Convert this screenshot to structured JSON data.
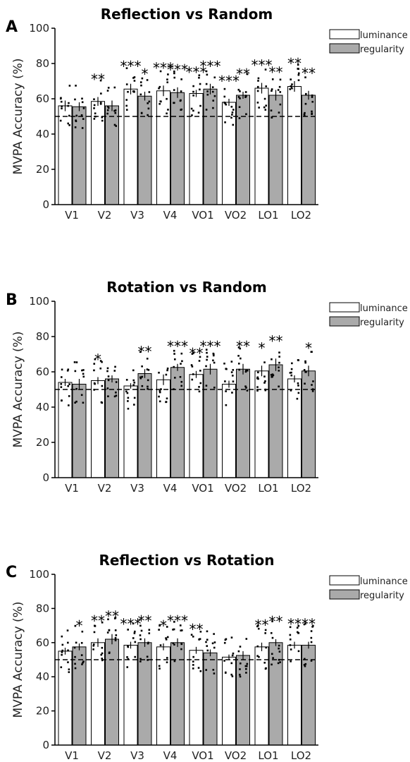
{
  "chart_data": [
    {
      "panel_letter": "A",
      "type": "bar",
      "title": "Reflection vs Random",
      "ylabel": "MVPA Accuracy (%)",
      "xlabel": "",
      "ylim": [
        0,
        100
      ],
      "yticks": [
        0,
        20,
        40,
        60,
        80,
        100
      ],
      "chance_line": 50,
      "legend": {
        "position": "top-right",
        "entries": [
          "luminance",
          "regularity"
        ]
      },
      "categories": [
        "V1",
        "V2",
        "V3",
        "V4",
        "VO1",
        "VO2",
        "LO1",
        "LO2"
      ],
      "series": [
        {
          "name": "luminance",
          "color": "#ffffff",
          "values": [
            56,
            58.5,
            65.5,
            64.5,
            63,
            58,
            66,
            67
          ],
          "sem": [
            3,
            2.5,
            3,
            3,
            2,
            2,
            3,
            3
          ],
          "significance": [
            "",
            "**",
            "***",
            "***",
            "***",
            "***",
            "***",
            "**"
          ]
        },
        {
          "name": "regularity",
          "color": "#aaaaaa",
          "values": [
            55.5,
            56,
            61.5,
            63.5,
            65.5,
            62,
            62,
            62
          ],
          "sem": [
            2.5,
            3,
            2.5,
            3,
            3,
            2,
            3,
            2.5
          ],
          "significance": [
            "",
            "",
            "*",
            "***",
            "***",
            "**",
            "**",
            "**"
          ]
        }
      ]
    },
    {
      "panel_letter": "B",
      "type": "bar",
      "title": "Rotation vs Random",
      "ylabel": "MVPA Accuracy (%)",
      "xlabel": "",
      "ylim": [
        0,
        100
      ],
      "yticks": [
        0,
        20,
        40,
        60,
        80,
        100
      ],
      "chance_line": 50,
      "legend": {
        "position": "top-right",
        "entries": [
          "luminance",
          "regularity"
        ]
      },
      "categories": [
        "V1",
        "V2",
        "V3",
        "V4",
        "VO1",
        "VO2",
        "LO1",
        "LO2"
      ],
      "series": [
        {
          "name": "luminance",
          "color": "#ffffff",
          "values": [
            54,
            55,
            52,
            55.5,
            58.5,
            53,
            60.5,
            56
          ],
          "sem": [
            2,
            2,
            1.5,
            3,
            2,
            2,
            3,
            2
          ],
          "significance": [
            "",
            "*",
            "",
            "",
            "**",
            "",
            "*",
            ""
          ]
        },
        {
          "name": "regularity",
          "color": "#aaaaaa",
          "values": [
            53,
            56,
            59,
            62.5,
            61.5,
            61.5,
            64,
            60.5
          ],
          "sem": [
            3,
            2,
            2.5,
            2,
            3,
            3,
            3.5,
            3
          ],
          "significance": [
            "",
            "",
            "**",
            "***",
            "***",
            "**",
            "**",
            "*"
          ]
        }
      ]
    },
    {
      "panel_letter": "C",
      "type": "bar",
      "title": "Reflection vs Rotation",
      "ylabel": "MVPA Accuracy (%)",
      "xlabel": "",
      "ylim": [
        0,
        100
      ],
      "yticks": [
        0,
        20,
        40,
        60,
        80,
        100
      ],
      "chance_line": 50,
      "legend": {
        "position": "top-right",
        "entries": [
          "luminance",
          "regularity"
        ]
      },
      "categories": [
        "V1",
        "V2",
        "V3",
        "V4",
        "VO1",
        "VO2",
        "LO1",
        "LO2"
      ],
      "series": [
        {
          "name": "luminance",
          "color": "#ffffff",
          "values": [
            55,
            60,
            58.5,
            57.5,
            55.5,
            51.5,
            57.5,
            58.5
          ],
          "sem": [
            2,
            2.5,
            2,
            2,
            2,
            1.5,
            2.5,
            2
          ],
          "significance": [
            "",
            "**",
            "***",
            "*",
            "**",
            "",
            "**",
            "**"
          ]
        },
        {
          "name": "regularity",
          "color": "#aaaaaa",
          "values": [
            57.5,
            62,
            60,
            60,
            54,
            52.5,
            60,
            58.5
          ],
          "sem": [
            2,
            3,
            2.5,
            2.5,
            2,
            2.5,
            2,
            2
          ],
          "significance": [
            "*",
            "**",
            "**",
            "***",
            "",
            "",
            "**",
            "**"
          ]
        }
      ]
    }
  ]
}
